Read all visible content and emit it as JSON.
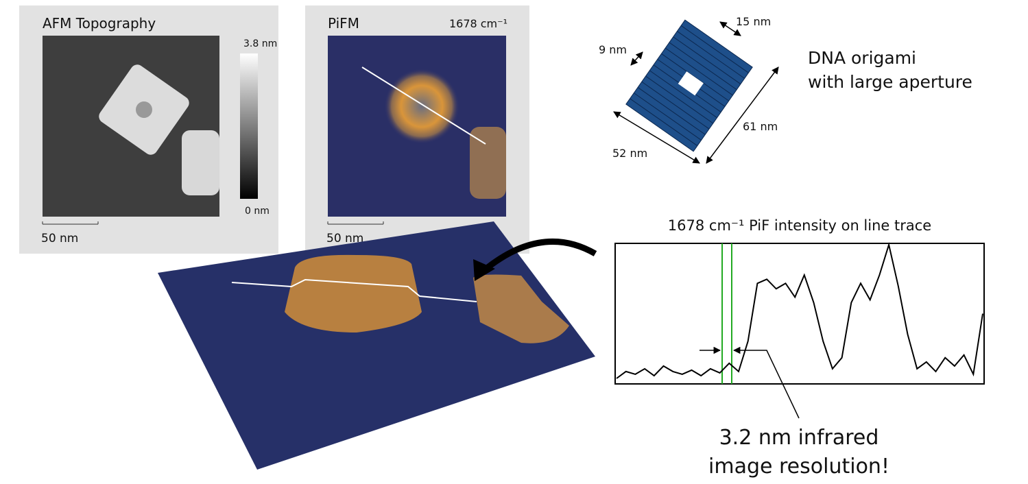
{
  "afm_panel": {
    "title": "AFM Topography",
    "colorbar_max": "3.8 nm",
    "colorbar_min": "0 nm",
    "scale_bar": "50 nm"
  },
  "pifm_panel": {
    "title": "PiFM",
    "wavenumber": "1678 cm⁻¹",
    "scale_bar": "50 nm"
  },
  "origami": {
    "dim_top": "15 nm",
    "dim_left": "9 nm",
    "dim_right": "61 nm",
    "dim_bottom": "52 nm",
    "caption_line1": "DNA origami",
    "caption_line2": "with large aperture"
  },
  "trace_plot": {
    "title": "1678 cm⁻¹ PiF intensity on line trace",
    "values": [
      3,
      8,
      6,
      10,
      5,
      12,
      8,
      6,
      9,
      5,
      10,
      7,
      14,
      8,
      30,
      72,
      75,
      68,
      72,
      62,
      78,
      58,
      30,
      10,
      18,
      58,
      72,
      60,
      78,
      100,
      70,
      35,
      10,
      15,
      8,
      18,
      12,
      20,
      6,
      50
    ],
    "ylim": [
      0,
      100
    ]
  },
  "callout": {
    "line1": "3.2 nm infrared",
    "line2": "image resolution!"
  }
}
